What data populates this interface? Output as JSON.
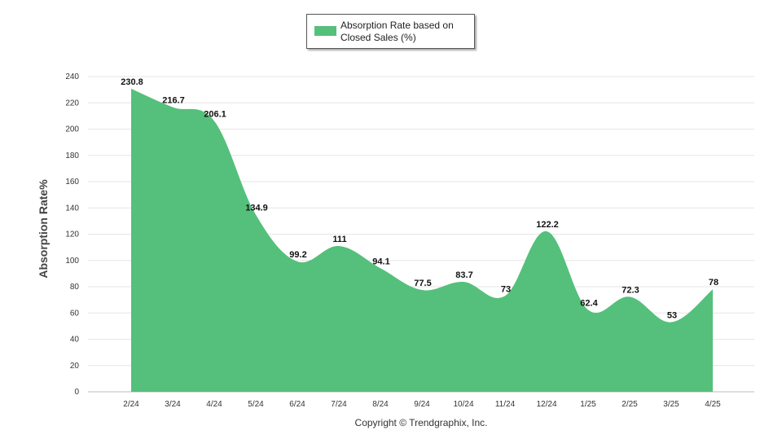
{
  "legend": {
    "label": "Absorption Rate based on Closed Sales (%)"
  },
  "colors": {
    "series": "#55c07b",
    "grid": "#e6e6e6",
    "axis": "#999999"
  },
  "footer": {
    "copyright": "Copyright © Trendgraphix, Inc."
  },
  "chart_data": {
    "type": "area",
    "title": "",
    "xlabel": "",
    "ylabel": "Absorption Rate%",
    "ylim": [
      0,
      240
    ],
    "yticks": [
      0,
      20,
      40,
      60,
      80,
      100,
      120,
      140,
      160,
      180,
      200,
      220,
      240
    ],
    "grid": true,
    "legend_position": "top-center",
    "categories": [
      "2/24",
      "3/24",
      "4/24",
      "5/24",
      "6/24",
      "7/24",
      "8/24",
      "9/24",
      "10/24",
      "11/24",
      "12/24",
      "1/25",
      "2/25",
      "3/25",
      "4/25"
    ],
    "series": [
      {
        "name": "Absorption Rate based on Closed Sales (%)",
        "values": [
          230.8,
          216.7,
          206.1,
          134.9,
          99.2,
          111,
          94.1,
          77.5,
          83.7,
          73,
          122.2,
          62.4,
          72.3,
          53,
          78
        ]
      }
    ]
  }
}
